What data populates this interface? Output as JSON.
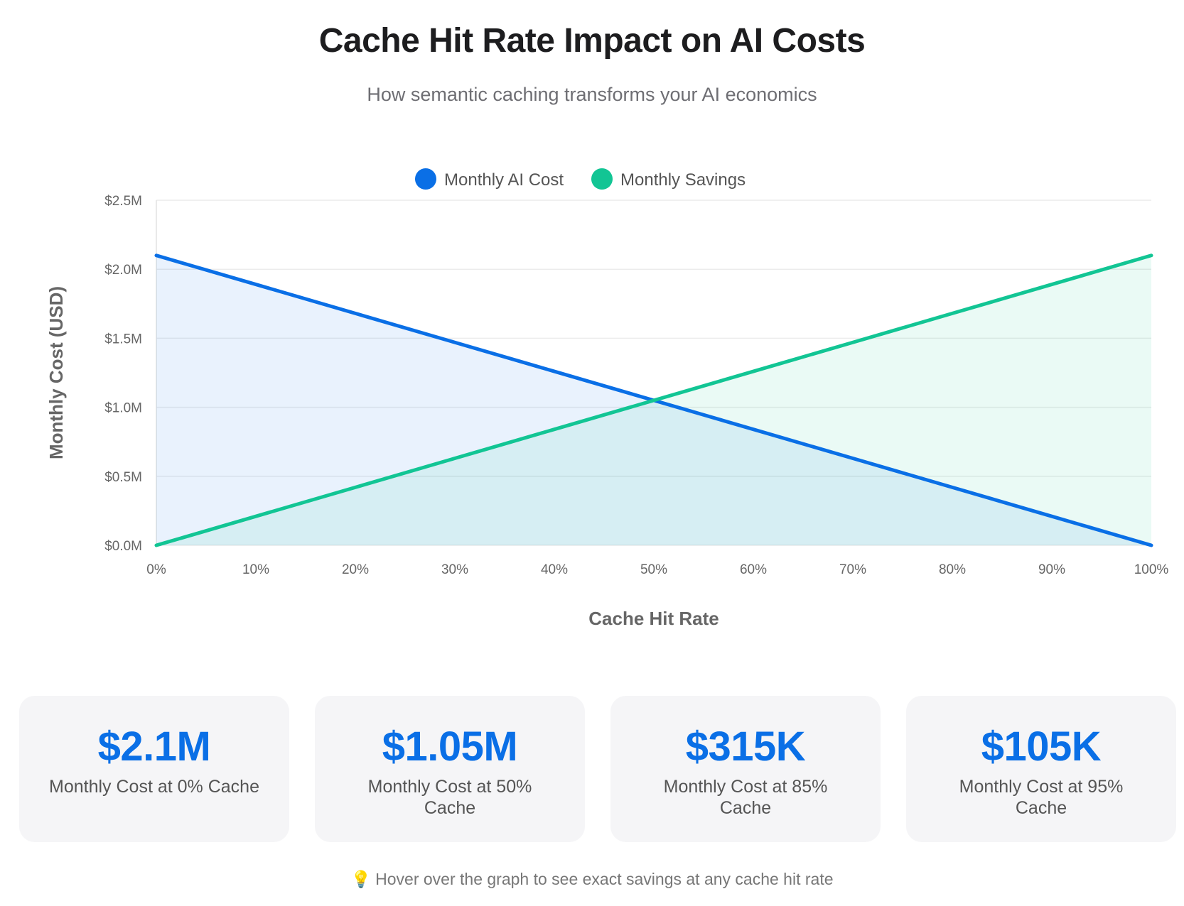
{
  "header": {
    "title": "Cache Hit Rate Impact on AI Costs",
    "subtitle": "How semantic caching transforms your AI economics"
  },
  "chart_data": {
    "type": "line",
    "x": [
      0,
      10,
      20,
      30,
      40,
      50,
      60,
      70,
      80,
      90,
      100
    ],
    "x_tick_labels": [
      "0%",
      "10%",
      "20%",
      "30%",
      "40%",
      "50%",
      "60%",
      "70%",
      "80%",
      "90%",
      "100%"
    ],
    "y_tick_values": [
      0,
      0.5,
      1.0,
      1.5,
      2.0,
      2.5
    ],
    "y_tick_labels": [
      "$0.0M",
      "$0.5M",
      "$1.0M",
      "$1.5M",
      "$2.0M",
      "$2.5M"
    ],
    "xlabel": "Cache Hit Rate",
    "ylabel": "Monthly Cost (USD)",
    "xlim": [
      0,
      100
    ],
    "ylim": [
      0,
      2.5
    ],
    "grid": true,
    "legend_position": "top-center",
    "series": [
      {
        "name": "Monthly AI Cost",
        "color": "#0a6fe6",
        "fill": true,
        "values": [
          2.1,
          1.89,
          1.68,
          1.47,
          1.26,
          1.05,
          0.84,
          0.63,
          0.42,
          0.21,
          0.0
        ]
      },
      {
        "name": "Monthly Savings",
        "color": "#12c594",
        "fill": true,
        "values": [
          0.0,
          0.21,
          0.42,
          0.63,
          0.84,
          1.05,
          1.26,
          1.47,
          1.68,
          1.89,
          2.1
        ]
      }
    ]
  },
  "cards": [
    {
      "value": "$2.1M",
      "label": "Monthly Cost at 0% Cache"
    },
    {
      "value": "$1.05M",
      "label": "Monthly Cost at 50% Cache"
    },
    {
      "value": "$315K",
      "label": "Monthly Cost at 85% Cache"
    },
    {
      "value": "$105K",
      "label": "Monthly Cost at 95% Cache"
    }
  ],
  "hint": {
    "icon": "lightbulb-icon",
    "text": "Hover over the graph to see exact savings at any cache hit rate"
  }
}
